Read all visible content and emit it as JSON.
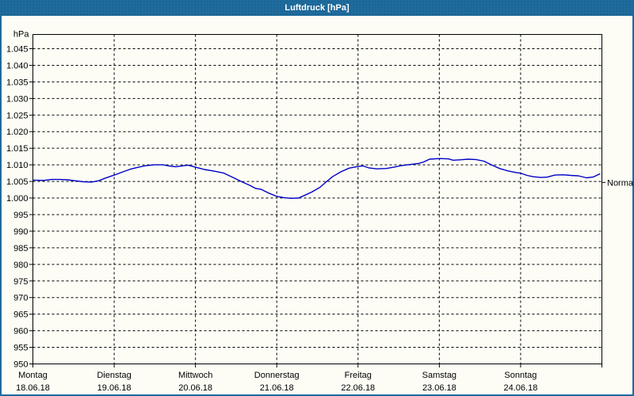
{
  "window": {
    "title": "Luftdruck [hPa]",
    "titlebar_color": "#1f6b9d",
    "border_color": "#1f6b9d",
    "panel_color": "#fdfdf6"
  },
  "chart_data": {
    "type": "line",
    "title": "Luftdruck [hPa]",
    "unit_label": "hPa",
    "grid": "dashed",
    "legend_position": "none",
    "colors": {
      "line": "#0000c8",
      "grid": "#000000",
      "axis": "#000000",
      "text": "#000000"
    },
    "y_axis": {
      "min": 950,
      "max": 1049,
      "tick_step": 5,
      "tick_values": [
        1045,
        1040,
        1035,
        1030,
        1025,
        1020,
        1015,
        1010,
        1005,
        1000,
        995,
        990,
        985,
        980,
        975,
        970,
        965,
        960,
        955,
        950
      ],
      "tick_labels": [
        "1.045",
        "1.040",
        "1.035",
        "1.030",
        "1.025",
        "1.020",
        "1.015",
        "1.010",
        "1.005",
        "1.000",
        "995",
        "990",
        "985",
        "980",
        "975",
        "970",
        "965",
        "960",
        "955",
        "950"
      ]
    },
    "x_axis": {
      "span_days": 7,
      "days": [
        {
          "name": "Montag",
          "date": "18.06.18"
        },
        {
          "name": "Dienstag",
          "date": "19.06.18"
        },
        {
          "name": "Mittwoch",
          "date": "20.06.18"
        },
        {
          "name": "Donnerstag",
          "date": "21.06.18"
        },
        {
          "name": "Freitag",
          "date": "22.06.18"
        },
        {
          "name": "Samstag",
          "date": "23.06.18"
        },
        {
          "name": "Sonntag",
          "date": "24.06.18"
        }
      ]
    },
    "normal_marker": {
      "label": "Normal",
      "value": 1004.7
    },
    "series": [
      {
        "name": "Luftdruck",
        "points": [
          [
            0.0,
            1005.4
          ],
          [
            0.13,
            1005.3
          ],
          [
            0.23,
            1005.6
          ],
          [
            0.33,
            1005.6
          ],
          [
            0.42,
            1005.5
          ],
          [
            0.52,
            1005.2
          ],
          [
            0.62,
            1004.9
          ],
          [
            0.72,
            1004.8
          ],
          [
            0.81,
            1005.2
          ],
          [
            0.88,
            1005.9
          ],
          [
            0.94,
            1006.4
          ],
          [
            1.0,
            1006.9
          ],
          [
            1.11,
            1007.9
          ],
          [
            1.2,
            1008.7
          ],
          [
            1.3,
            1009.3
          ],
          [
            1.4,
            1009.8
          ],
          [
            1.5,
            1010.0
          ],
          [
            1.6,
            1010.0
          ],
          [
            1.69,
            1009.6
          ],
          [
            1.76,
            1009.4
          ],
          [
            1.84,
            1009.7
          ],
          [
            1.91,
            1009.9
          ],
          [
            2.0,
            1009.3
          ],
          [
            2.11,
            1008.6
          ],
          [
            2.23,
            1008.1
          ],
          [
            2.35,
            1007.5
          ],
          [
            2.47,
            1006.1
          ],
          [
            2.57,
            1004.9
          ],
          [
            2.67,
            1003.8
          ],
          [
            2.74,
            1002.9
          ],
          [
            2.81,
            1002.6
          ],
          [
            2.91,
            1001.4
          ],
          [
            3.0,
            1000.5
          ],
          [
            3.09,
            1000.1
          ],
          [
            3.18,
            999.9
          ],
          [
            3.27,
            1000.0
          ],
          [
            3.35,
            1000.9
          ],
          [
            3.43,
            1001.8
          ],
          [
            3.53,
            1003.2
          ],
          [
            3.61,
            1004.9
          ],
          [
            3.69,
            1006.5
          ],
          [
            3.79,
            1007.9
          ],
          [
            3.89,
            1009.0
          ],
          [
            4.0,
            1009.5
          ],
          [
            4.06,
            1009.7
          ],
          [
            4.13,
            1009.1
          ],
          [
            4.23,
            1008.8
          ],
          [
            4.35,
            1008.9
          ],
          [
            4.44,
            1009.3
          ],
          [
            4.54,
            1009.8
          ],
          [
            4.64,
            1010.1
          ],
          [
            4.74,
            1010.4
          ],
          [
            4.81,
            1010.9
          ],
          [
            4.88,
            1011.7
          ],
          [
            5.0,
            1011.9
          ],
          [
            5.11,
            1011.8
          ],
          [
            5.17,
            1011.4
          ],
          [
            5.25,
            1011.5
          ],
          [
            5.35,
            1011.7
          ],
          [
            5.45,
            1011.6
          ],
          [
            5.55,
            1011.1
          ],
          [
            5.64,
            1010.0
          ],
          [
            5.74,
            1008.9
          ],
          [
            5.84,
            1008.2
          ],
          [
            5.94,
            1007.7
          ],
          [
            6.0,
            1007.5
          ],
          [
            6.08,
            1006.8
          ],
          [
            6.16,
            1006.4
          ],
          [
            6.25,
            1006.2
          ],
          [
            6.33,
            1006.3
          ],
          [
            6.42,
            1006.9
          ],
          [
            6.52,
            1007.0
          ],
          [
            6.62,
            1006.8
          ],
          [
            6.71,
            1006.7
          ],
          [
            6.81,
            1006.1
          ],
          [
            6.89,
            1006.3
          ],
          [
            6.98,
            1007.3
          ]
        ]
      }
    ]
  }
}
